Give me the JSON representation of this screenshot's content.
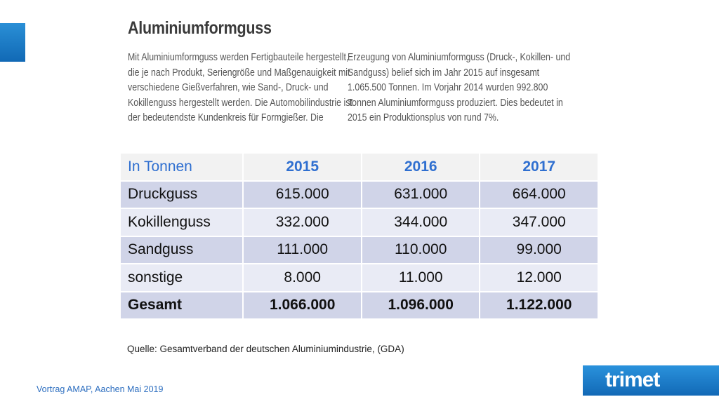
{
  "slide": {
    "title": "Aluminiumformguss",
    "left_column": [
      "Mit Aluminiumformguss werden Fertigbauteile hergestellt,",
      "die je nach Produkt, Seriengröße und Maßgenauigkeit mit",
      "verschiedene Gießverfahren, wie Sand-, Druck- und",
      "Kokillenguss hergestellt werden. Die Automobilindustrie ist",
      "der bedeutendste Kundenkreis für Formgießer. Die"
    ],
    "right_column": [
      "Erzeugung von Aluminiumformguss (Druck-, Kokillen- und",
      "Sandguss) belief sich im Jahr 2015 auf insgesamt",
      "1.065.500 Tonnen. Im Vorjahr 2014 wurden 992.800",
      "Tonnen Aluminiumformguss produziert. Dies bedeutet in",
      "2015 ein Produktionsplus von rund 7%."
    ]
  },
  "table": {
    "header": [
      "In Tonnen",
      "2015",
      "2016",
      "2017"
    ],
    "rows": [
      [
        "Druckguss",
        "615.000",
        "631.000",
        "664.000"
      ],
      [
        "Kokillenguss",
        "332.000",
        "344.000",
        "347.000"
      ],
      [
        "Sandguss",
        "111.000",
        "110.000",
        "99.000"
      ],
      [
        "sonstige",
        "8.000",
        "11.000",
        "12.000"
      ],
      [
        "Gesamt",
        "1.066.000",
        "1.096.000",
        "1.122.000"
      ]
    ]
  },
  "source": "Quelle:  Gesamtverband der deutschen Aluminiumindustrie, (GDA)",
  "footer": "Vortrag AMAP, Aachen Mai 2019",
  "logo": "trimet",
  "colors": {
    "accent_blue": "#1a7cc9",
    "header_text": "#2f6fd0",
    "row_dark": "#d0d4e8",
    "row_light": "#e9ebf5"
  }
}
